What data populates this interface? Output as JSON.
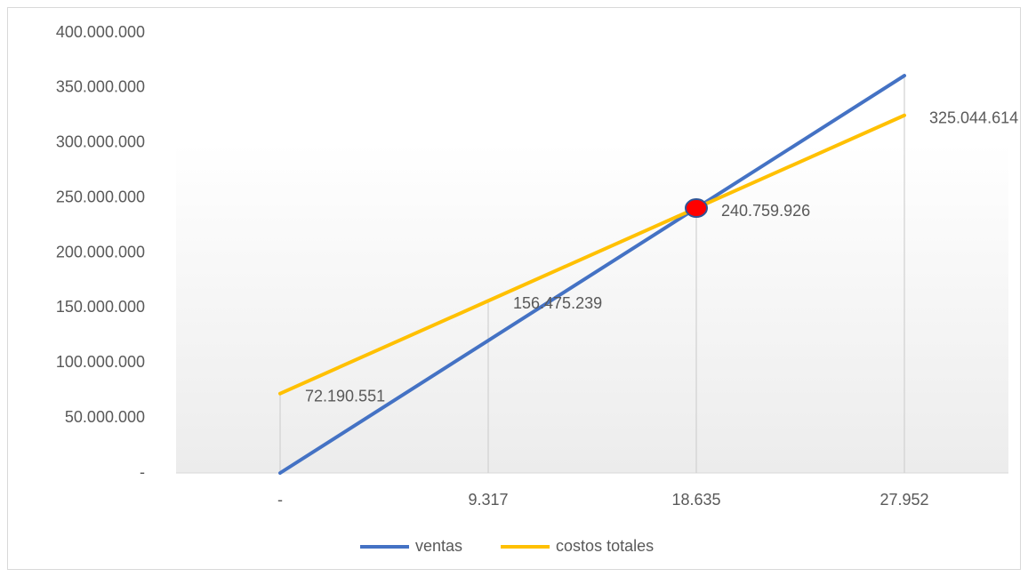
{
  "chart_data": {
    "type": "line",
    "categories": [
      "-",
      "9.317",
      "18.635",
      "27.952"
    ],
    "series": [
      {
        "name": "ventas",
        "color": "#4472c4",
        "values": [
          0,
          120380000,
          240759926,
          361140000
        ],
        "marker": {
          "index": 2,
          "color": "#ff0000",
          "edge": "#2f5597"
        }
      },
      {
        "name": "costos totales",
        "color": "#ffc000",
        "values": [
          72190551,
          156475239,
          240759926,
          325044614
        ],
        "value_labels": [
          "72.190.551",
          "156.475.239",
          "240.759.926",
          "325.044.614"
        ]
      }
    ],
    "ylim": [
      0,
      400000000
    ],
    "yticks": [
      {
        "value": 0,
        "label": "-"
      },
      {
        "value": 50000000,
        "label": "50.000.000"
      },
      {
        "value": 100000000,
        "label": "100.000.000"
      },
      {
        "value": 150000000,
        "label": "150.000.000"
      },
      {
        "value": 200000000,
        "label": "200.000.000"
      },
      {
        "value": 250000000,
        "label": "250.000.000"
      },
      {
        "value": 300000000,
        "label": "300.000.000"
      },
      {
        "value": 350000000,
        "label": "350.000.000"
      },
      {
        "value": 400000000,
        "label": "400.000.000"
      }
    ],
    "drop_lines": true,
    "legend": "bottom"
  }
}
